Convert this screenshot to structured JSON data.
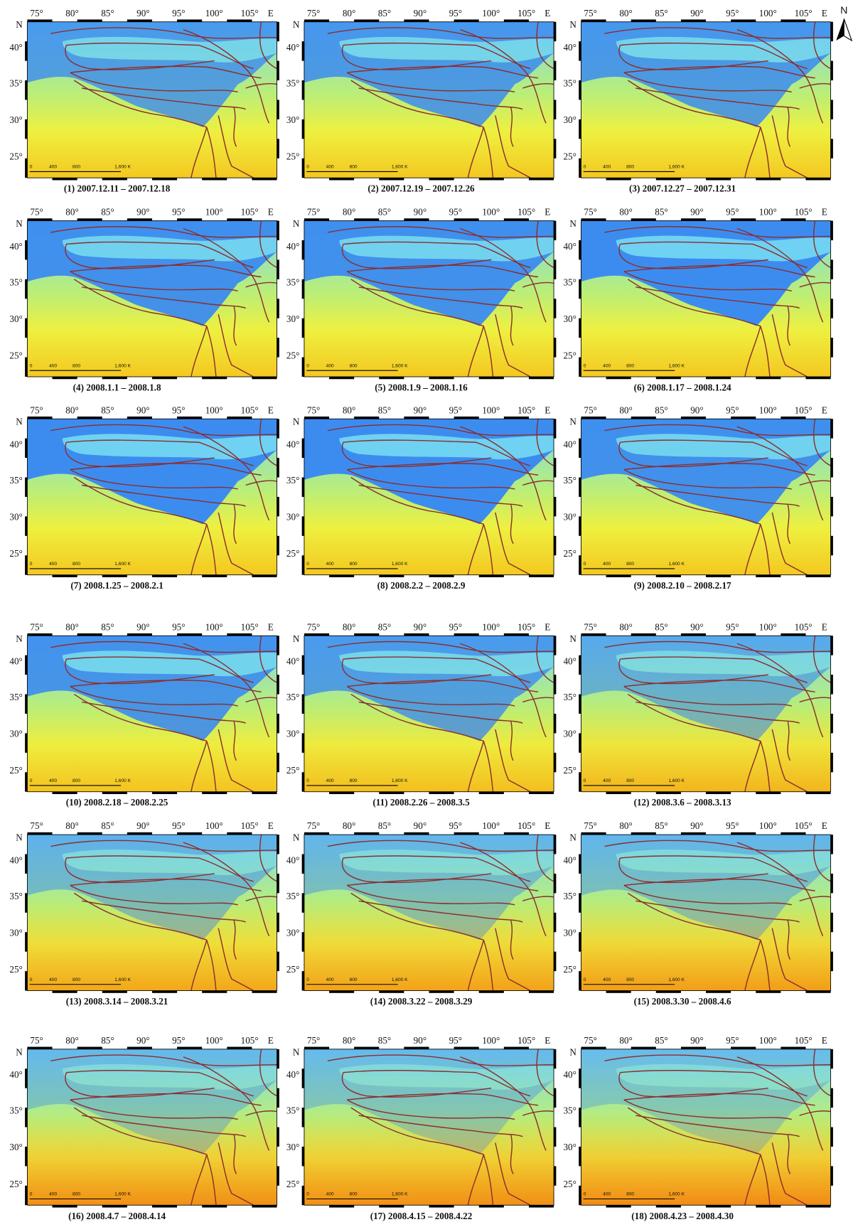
{
  "north_arrow": "N",
  "lon_labels": [
    "75°",
    "80°",
    "85°",
    "90°",
    "95°",
    "100°",
    "105°",
    "E"
  ],
  "lat_labels": [
    "N",
    "40°",
    "35°",
    "30°",
    "25°"
  ],
  "scale_labels": [
    "0",
    "400",
    "800",
    "1,600 K"
  ],
  "captions": [
    "(1) 2007.12.11 – 2007.12.18",
    "(2) 2007.12.19 – 2007.12.26",
    "(3) 2007.12.27 – 2007.12.31",
    "(4) 2008.1.1 – 2008.1.8",
    "(5) 2008.1.9 – 2008.1.16",
    "(6) 2008.1.17 – 2008.1.24",
    "(7) 2008.1.25 – 2008.2.1",
    "(8) 2008.2.2 – 2008.2.9",
    "(9) 2008.2.10 – 2008.2.17",
    "(10) 2008.2.18 – 2008.2.25",
    "(11) 2008.2.26 – 2008.3.5",
    "(12) 2008.3.6 – 2008.3.13",
    "(13) 2008.3.14 – 2008.3.21",
    "(14) 2008.3.22 – 2008.3.29",
    "(15) 2008.3.30 – 2008.4.6",
    "(16) 2008.4.7 – 2008.4.14",
    "(17) 2008.4.15 – 2008.4.22",
    "(18) 2008.4.23 – 2008.4.30"
  ]
}
